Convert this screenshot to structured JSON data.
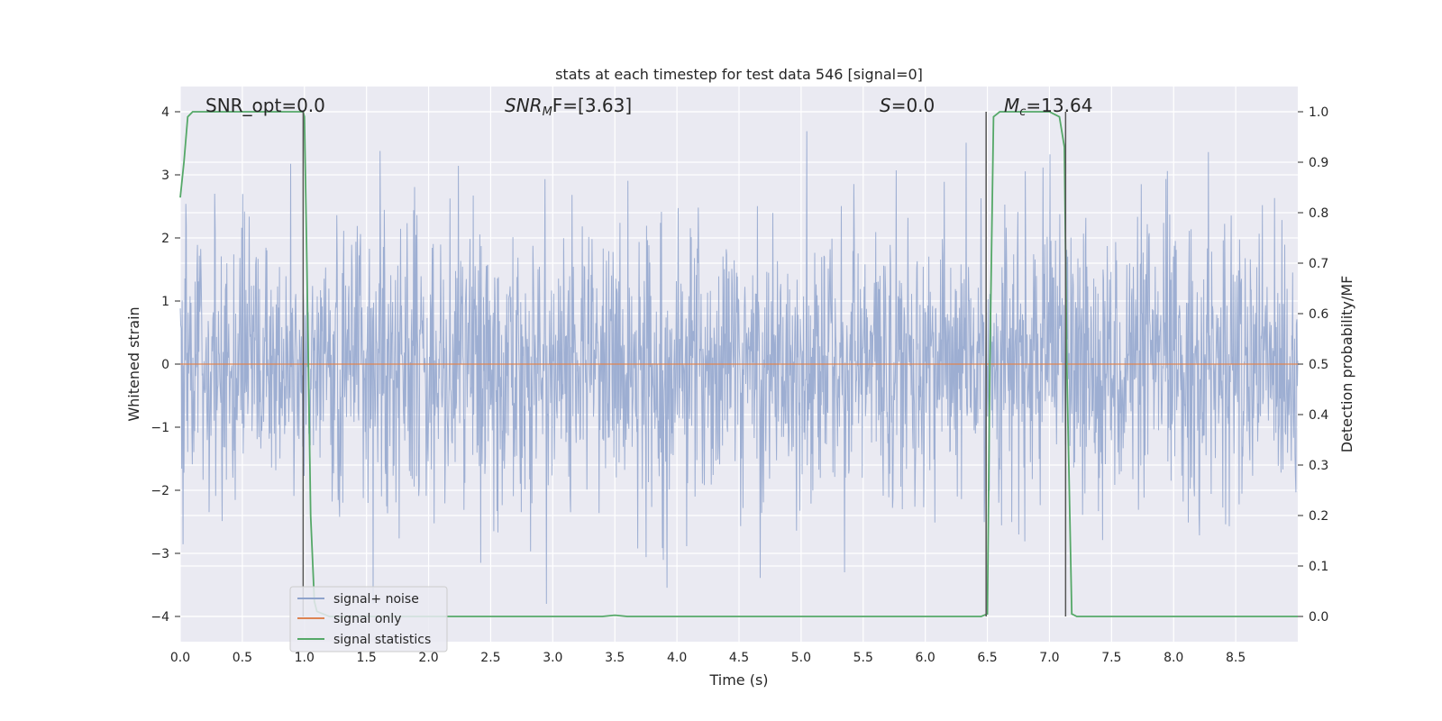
{
  "chart_data": {
    "type": "line",
    "title": "stats at each timestep for test data 546 [signal=0]",
    "xlabel": "Time (s)",
    "ylabel": "Whitened strain",
    "y2label": "Detection probability/MF",
    "xlim": [
      0.0,
      9.0
    ],
    "ylim": [
      -4.4,
      4.4
    ],
    "y2lim": [
      -0.05,
      1.05
    ],
    "xticks": [
      "0.0",
      "0.5",
      "1.0",
      "1.5",
      "2.0",
      "2.5",
      "3.0",
      "3.5",
      "4.0",
      "4.5",
      "5.0",
      "5.5",
      "6.0",
      "6.5",
      "7.0",
      "7.5",
      "8.0",
      "8.5"
    ],
    "yticks": [
      "−4",
      "−3",
      "−2",
      "−1",
      "0",
      "1",
      "2",
      "3",
      "4"
    ],
    "y2ticks": [
      "0.0",
      "0.1",
      "0.2",
      "0.3",
      "0.4",
      "0.5",
      "0.6",
      "0.7",
      "0.8",
      "0.9",
      "1.0"
    ],
    "grid": true,
    "legend_position": "lower-left",
    "annotations": {
      "snr_opt": "SNR_opt=0.0",
      "snr_mf_main": "SNR",
      "snr_mf_sub": "M",
      "snr_mf_rest": "F=[3.63]",
      "s_main": "S",
      "s_rest": "=0.0",
      "mc_main": "M",
      "mc_sub": "c",
      "mc_rest": "=13.64"
    },
    "series": [
      {
        "name": "signal+ noise",
        "color": "#8fa3cc",
        "description_values": "whitened noise, roughly ±2 with spikes up to ±4",
        "amplitude_envelope": [
          -3.8,
          4.0
        ]
      },
      {
        "name": "signal only",
        "color": "#dd8452",
        "x": [
          0.0,
          9.0
        ],
        "y": [
          0.0,
          0.0
        ]
      },
      {
        "name": "signal statistics",
        "color": "#55a868",
        "x": [
          0.0,
          0.03,
          0.06,
          0.1,
          0.2,
          0.5,
          0.8,
          0.99,
          1.0,
          1.02,
          1.05,
          1.08,
          1.1,
          1.2,
          1.5,
          2.0,
          3.0,
          3.4,
          3.5,
          3.6,
          4.0,
          5.0,
          6.0,
          6.45,
          6.5,
          6.52,
          6.55,
          6.6,
          7.0,
          7.08,
          7.12,
          7.14,
          7.18,
          7.22,
          7.3,
          8.0,
          9.0
        ],
        "y": [
          0.83,
          0.9,
          0.99,
          1.0,
          1.0,
          1.0,
          1.0,
          1.0,
          0.99,
          0.7,
          0.2,
          0.03,
          0.01,
          0.0,
          0.0,
          0.0,
          0.0,
          0.0,
          0.0025,
          0.0,
          0.0,
          0.0,
          0.0,
          0.0,
          0.005,
          0.5,
          0.99,
          1.0,
          1.0,
          0.99,
          0.93,
          0.5,
          0.005,
          0.0,
          0.0,
          0.0,
          0.0
        ]
      }
    ],
    "vertical_markers": [
      {
        "x": 0.99,
        "y1_from": 0.0,
        "y1_to": 1.0,
        "color": "#555555"
      },
      {
        "x": 6.49,
        "y1_from": 0.0,
        "y1_to": 1.0,
        "color": "#555555"
      },
      {
        "x": 7.13,
        "y1_from": 0.0,
        "y1_to": 1.0,
        "color": "#555555"
      }
    ]
  }
}
